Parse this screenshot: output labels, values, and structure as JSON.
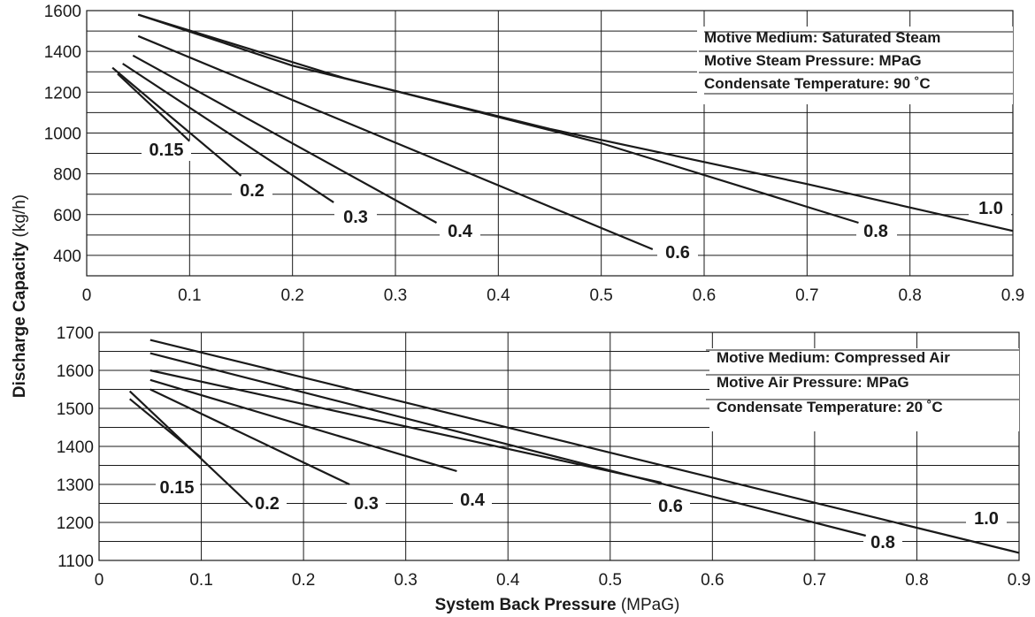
{
  "chart_data": [
    {
      "type": "line",
      "title": "",
      "info_box": [
        "Motive Medium: Saturated Steam",
        "Motive Steam Pressure: MPaG",
        "Condensate Temperature: 90 ˚C"
      ],
      "xlim": [
        0,
        0.9
      ],
      "ylim": [
        300,
        1600
      ],
      "x_ticks": [
        "0",
        "0.1",
        "0.2",
        "0.3",
        "0.4",
        "0.5",
        "0.6",
        "0.7",
        "0.8",
        "0.9"
      ],
      "y_ticks": [
        "400",
        "600",
        "800",
        "1000",
        "1200",
        "1400",
        "1600"
      ],
      "grid": true,
      "series": [
        {
          "name": "0.15",
          "x": [
            0.03,
            0.1
          ],
          "y": [
            1290,
            960
          ]
        },
        {
          "name": "0.2",
          "x": [
            0.025,
            0.15
          ],
          "y": [
            1320,
            790
          ]
        },
        {
          "name": "0.3",
          "x": [
            0.035,
            0.24
          ],
          "y": [
            1340,
            660
          ]
        },
        {
          "name": "0.4",
          "x": [
            0.045,
            0.34
          ],
          "y": [
            1380,
            560
          ]
        },
        {
          "name": "0.6",
          "x": [
            0.05,
            0.55
          ],
          "y": [
            1475,
            430
          ]
        },
        {
          "name": "0.8",
          "x": [
            0.05,
            0.25,
            0.5,
            0.75
          ],
          "y": [
            1580,
            1270,
            950,
            560
          ]
        },
        {
          "name": "1.0",
          "x": [
            0.05,
            0.2,
            0.45,
            0.7,
            0.9
          ],
          "y": [
            1580,
            1330,
            1020,
            750,
            520
          ]
        }
      ]
    },
    {
      "type": "line",
      "title": "",
      "info_box": [
        "Motive Medium: Compressed Air",
        "Motive Air Pressure: MPaG",
        "Condensate Temperature: 20 ˚C"
      ],
      "xlim": [
        0,
        0.9
      ],
      "ylim": [
        1100,
        1700
      ],
      "x_ticks": [
        "0",
        "0.1",
        "0.2",
        "0.3",
        "0.4",
        "0.5",
        "0.6",
        "0.7",
        "0.8",
        "0.9"
      ],
      "y_ticks": [
        "1100",
        "1200",
        "1300",
        "1400",
        "1500",
        "1600",
        "1700"
      ],
      "grid": true,
      "series": [
        {
          "name": "0.15",
          "x": [
            0.03,
            0.1
          ],
          "y": [
            1525,
            1370
          ]
        },
        {
          "name": "0.2",
          "x": [
            0.03,
            0.15
          ],
          "y": [
            1545,
            1240
          ]
        },
        {
          "name": "0.3",
          "x": [
            0.05,
            0.245
          ],
          "y": [
            1550,
            1300
          ]
        },
        {
          "name": "0.4",
          "x": [
            0.05,
            0.35
          ],
          "y": [
            1575,
            1335
          ]
        },
        {
          "name": "0.6",
          "x": [
            0.05,
            0.55
          ],
          "y": [
            1600,
            1305
          ]
        },
        {
          "name": "0.8",
          "x": [
            0.05,
            0.75
          ],
          "y": [
            1645,
            1165
          ]
        },
        {
          "name": "1.0",
          "x": [
            0.05,
            0.9
          ],
          "y": [
            1680,
            1120
          ]
        }
      ]
    }
  ],
  "ylabel": {
    "bold": "Discharge Capacity",
    "unit": " (kg/h)"
  },
  "xlabel": {
    "bold": "System Back Pressure",
    "unit": " (MPaG)"
  }
}
